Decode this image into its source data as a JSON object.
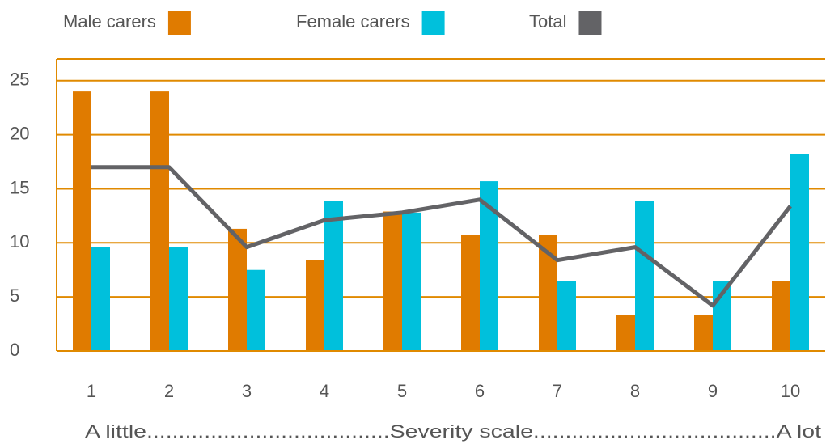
{
  "chart_data": {
    "type": "bar",
    "x_label": "A little......................................Severity scale......................................A lot",
    "categories": [
      "1",
      "2",
      "3",
      "4",
      "5",
      "6",
      "7",
      "8",
      "9",
      "10"
    ],
    "series": [
      {
        "name": "Male carers",
        "color": "#e07b00",
        "type": "bar",
        "values": [
          24,
          24,
          11.3,
          8.4,
          12.9,
          10.7,
          10.7,
          3.3,
          3.3,
          6.5
        ]
      },
      {
        "name": "Female carers",
        "color": "#00c0dc",
        "type": "bar",
        "values": [
          9.6,
          9.6,
          7.5,
          13.9,
          12.8,
          15.7,
          6.5,
          13.9,
          6.5,
          18.2
        ]
      },
      {
        "name": "Total",
        "color": "#636366",
        "type": "line",
        "values": [
          17,
          17,
          9.6,
          12.1,
          12.8,
          14,
          8.4,
          9.6,
          4.2,
          13.4
        ]
      }
    ],
    "ylim": [
      0,
      27
    ],
    "yticks": [
      0,
      5,
      10,
      15,
      20,
      25
    ],
    "grid": true,
    "grid_color": "#e08a00",
    "legend": "top"
  }
}
